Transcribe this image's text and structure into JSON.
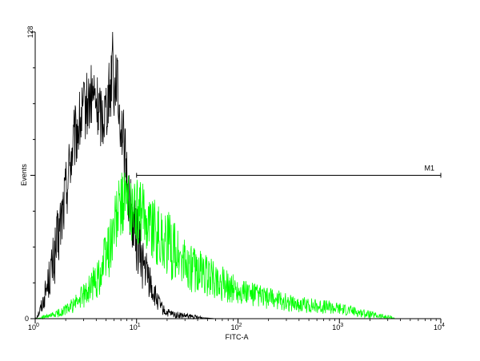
{
  "chart_data": {
    "type": "line",
    "title": "",
    "xlabel": "FITC-A",
    "ylabel": "Events",
    "x_scale": "log",
    "xlim": [
      1,
      10000
    ],
    "ylim": [
      0,
      128
    ],
    "grid": false,
    "x_tick_labels": [
      {
        "value": 1,
        "base": "10",
        "exp": "0"
      },
      {
        "value": 10,
        "base": "10",
        "exp": "1"
      },
      {
        "value": 100,
        "base": "10",
        "exp": "2"
      },
      {
        "value": 1000,
        "base": "10",
        "exp": "3"
      },
      {
        "value": 10000,
        "base": "10",
        "exp": "4"
      }
    ],
    "y_tick_labels": [
      {
        "value": 0,
        "label": "0"
      },
      {
        "value": 128,
        "label": "128"
      }
    ],
    "gate": {
      "label": "M1",
      "x_start": 10,
      "x_end": 10000,
      "y": 64
    },
    "series": [
      {
        "color": "#000000",
        "x": [
          1.0,
          1.1,
          1.2,
          1.3,
          1.45,
          1.6,
          1.75,
          1.9,
          2.05,
          2.2,
          2.4,
          2.6,
          2.8,
          3.0,
          3.2,
          3.4,
          3.7,
          4.0,
          4.3,
          4.6,
          5.0,
          5.3,
          5.6,
          5.8,
          6.0,
          6.3,
          6.6,
          7.0,
          7.4,
          7.8,
          8.2,
          8.7,
          9.2,
          9.8,
          10.5,
          11.3,
          12.2,
          13.2,
          14.5,
          16.0,
          17.5,
          19.0,
          22.0,
          26.0,
          32.0,
          40.0,
          50.0,
          60.0
        ],
        "y": [
          0,
          3,
          8,
          14,
          22,
          30,
          40,
          50,
          60,
          70,
          78,
          84,
          88,
          92,
          95,
          97,
          100,
          96,
          92,
          90,
          95,
          100,
          104,
          128,
          98,
          112,
          96,
          88,
          80,
          68,
          58,
          50,
          44,
          38,
          32,
          26,
          22,
          18,
          12,
          8,
          5,
          3,
          2,
          1.5,
          1,
          0.5,
          0.3,
          0
        ]
      },
      {
        "color": "#00ff00",
        "x": [
          1.0,
          1.2,
          1.4,
          1.6,
          1.8,
          2.0,
          2.2,
          2.5,
          2.8,
          3.1,
          3.5,
          4.0,
          4.5,
          5.0,
          5.5,
          6.0,
          6.5,
          7.0,
          7.5,
          8.0,
          8.5,
          9.0,
          10.0,
          11.0,
          12.0,
          13.5,
          15.0,
          17.0,
          19.0,
          22.0,
          25.0,
          30.0,
          35.0,
          40.0,
          50.0,
          60.0,
          75.0,
          90.0,
          110.0,
          140.0,
          180.0,
          230.0,
          300.0,
          400.0,
          500.0,
          650.0,
          800.0,
          1000.0,
          1300.0,
          1700.0,
          2200.0,
          2800.0,
          3500.0
        ],
        "y": [
          0,
          0.5,
          1,
          2,
          3,
          4,
          5,
          7,
          9,
          11,
          14,
          17,
          22,
          28,
          34,
          40,
          46,
          50,
          53,
          52,
          50,
          49,
          48,
          46,
          47,
          44,
          40,
          36,
          34,
          32,
          28,
          24,
          22,
          21,
          19,
          17,
          15,
          13.5,
          12,
          10.5,
          9.5,
          8.5,
          7.5,
          6.5,
          6,
          5.5,
          5,
          4.5,
          3.5,
          2.5,
          1.5,
          0.8,
          0.3
        ]
      }
    ]
  }
}
